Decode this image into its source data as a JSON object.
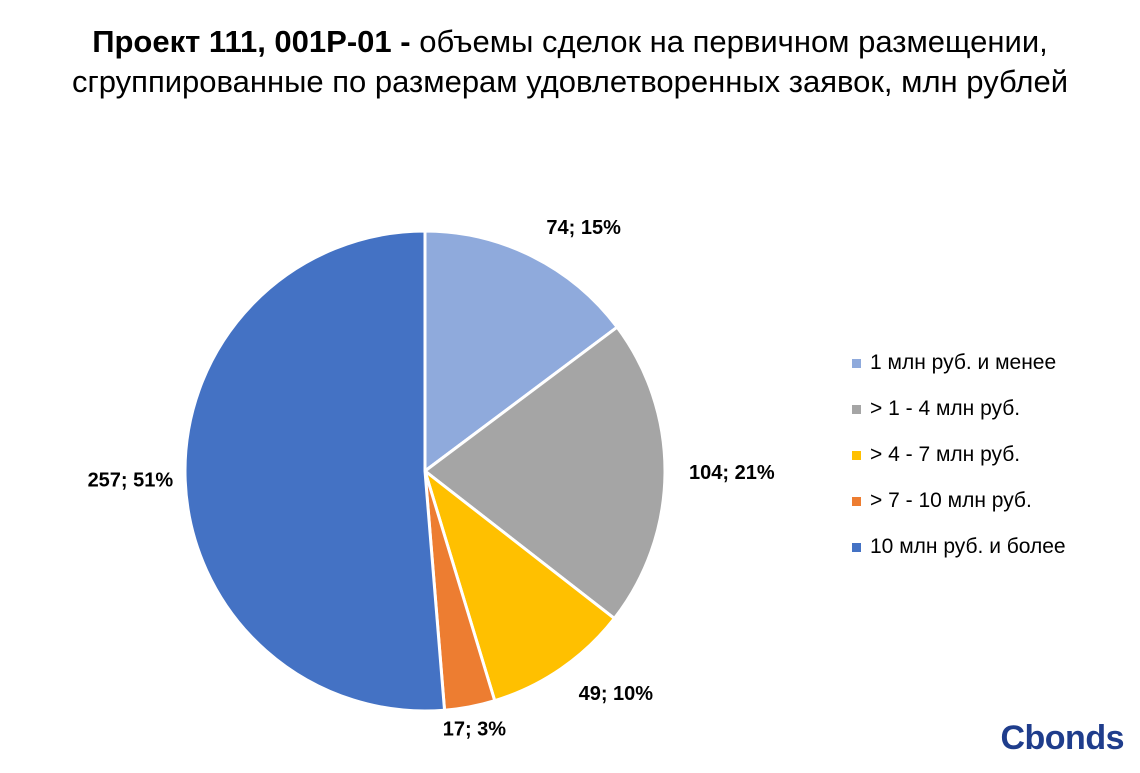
{
  "chart_data": {
    "type": "pie",
    "title_bold": "Проект 111, 001P-01 -",
    "title_rest": "объемы сделок на первичном размещении, сгруппированные по размерам удовлетворенных заявок, млн рублей",
    "slices": [
      {
        "name": "1 млн руб. и менее",
        "value": 74,
        "percent": "15%",
        "color": "#8FAADC"
      },
      {
        "name": "> 1 - 4 млн руб.",
        "value": 104,
        "percent": "21%",
        "color": "#A5A5A5"
      },
      {
        "name": "> 4 - 7 млн руб.",
        "value": 49,
        "percent": "10%",
        "color": "#FFC000"
      },
      {
        "name": "> 7 - 10 млн руб.",
        "value": 17,
        "percent": "3%",
        "color": "#ED7D31"
      },
      {
        "name": "10 млн руб. и более",
        "value": 257,
        "percent": "51%",
        "color": "#4472C4"
      }
    ],
    "legend_position": "right"
  },
  "brand": {
    "logo_text": "Cbonds",
    "color": "#1F3D8C"
  }
}
